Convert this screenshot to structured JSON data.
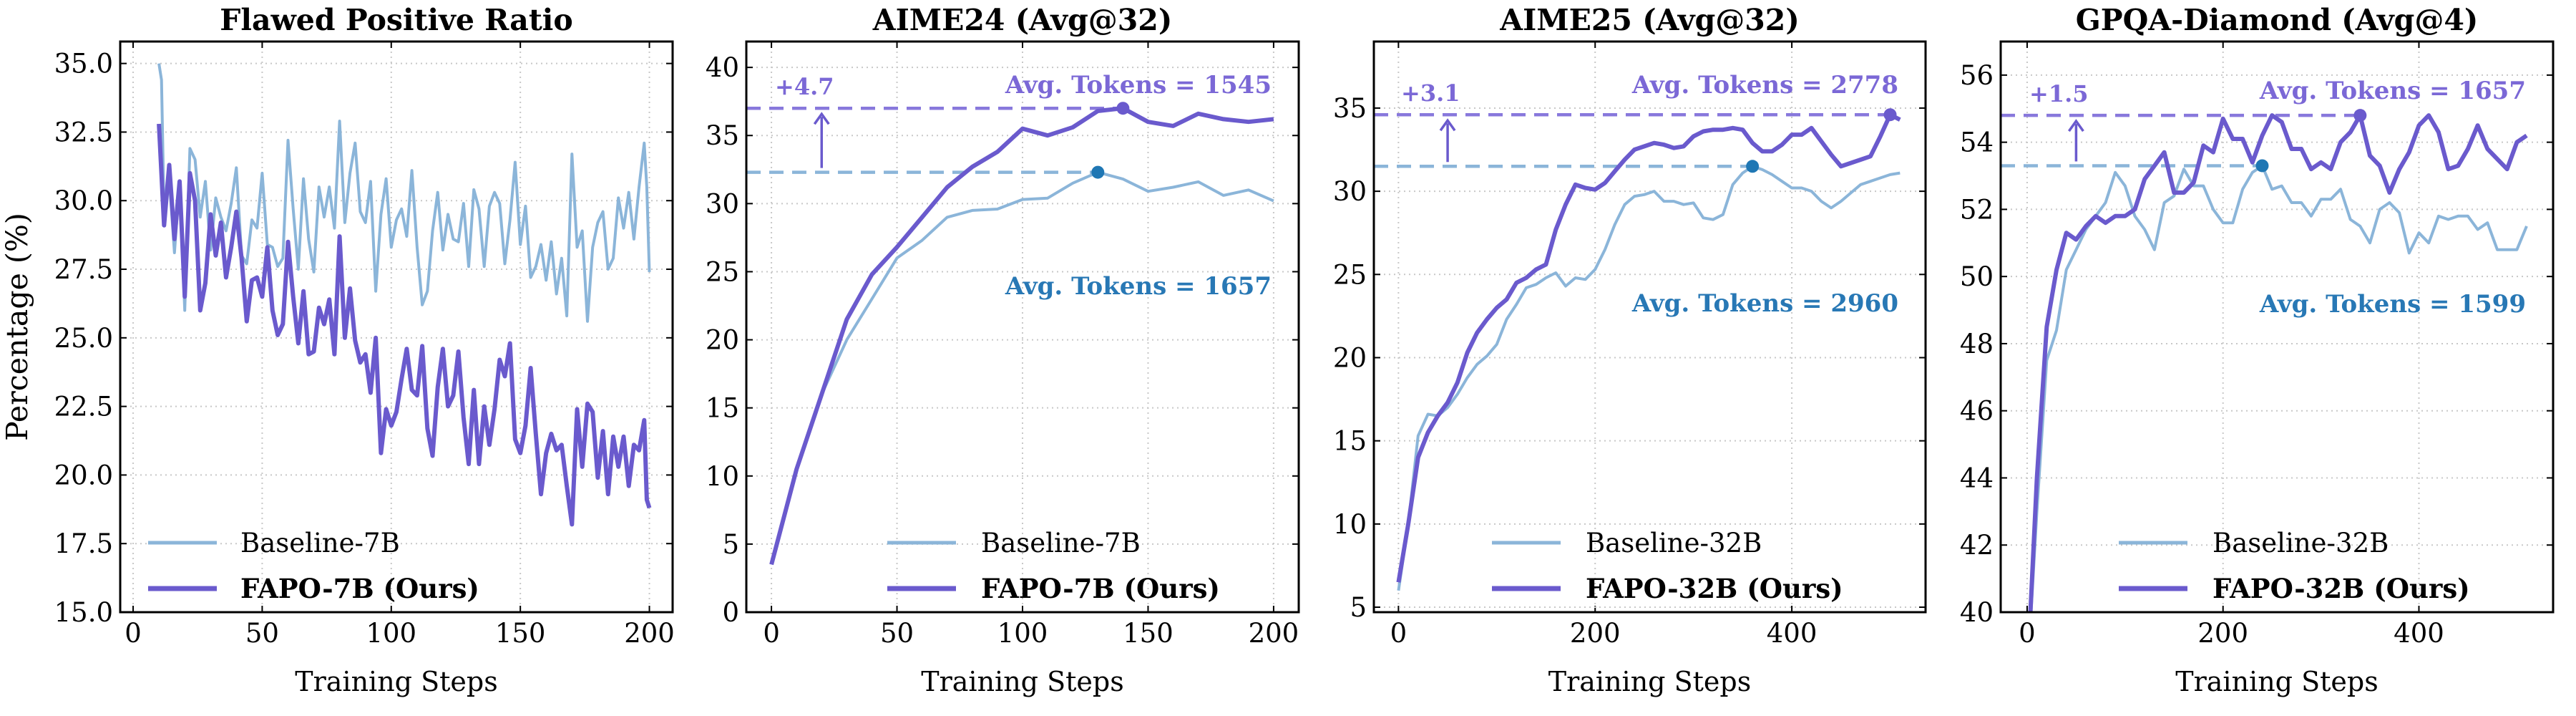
{
  "colors": {
    "baseline": "#8bb5d9",
    "fapo": "#6a5acd",
    "baseline_marker": "#1f77b4",
    "baseline_text": "#2878b5",
    "fapo_text": "#7b68d6",
    "fapo_dash": "#8878dc",
    "grid": "#c8c8c8"
  },
  "chart_data": [
    {
      "type": "line",
      "title": "Flawed Positive Ratio",
      "xlabel": "Training Steps",
      "ylabel": "Percentage (%)",
      "xlim": [
        -5,
        209
      ],
      "ylim": [
        15,
        35.8
      ],
      "xticks": [
        0,
        50,
        100,
        150,
        200
      ],
      "yticks": [
        "15.0",
        "17.5",
        "20.0",
        "22.5",
        "25.0",
        "27.5",
        "30.0",
        "32.5",
        "35.0"
      ],
      "grid": true,
      "legend_position": "lower-left",
      "series": [
        {
          "name": "Baseline-7B",
          "key": "baseline",
          "x": [
            10,
            11,
            12,
            14,
            16,
            18,
            20,
            22,
            24,
            26,
            28,
            30,
            32,
            34,
            36,
            38,
            40,
            42,
            44,
            46,
            48,
            50,
            52,
            54,
            56,
            58,
            60,
            62,
            64,
            66,
            68,
            70,
            72,
            74,
            76,
            78,
            80,
            82,
            84,
            86,
            88,
            90,
            92,
            94,
            96,
            98,
            100,
            102,
            104,
            106,
            108,
            110,
            112,
            114,
            116,
            118,
            120,
            122,
            124,
            126,
            128,
            130,
            132,
            134,
            136,
            138,
            140,
            142,
            144,
            146,
            148,
            150,
            152,
            154,
            156,
            158,
            160,
            162,
            164,
            166,
            168,
            170,
            172,
            174,
            176,
            178,
            180,
            182,
            184,
            186,
            188,
            190,
            192,
            194,
            196,
            198,
            199,
            200
          ],
          "y": [
            35,
            34.4,
            29.5,
            30.8,
            28.1,
            30.7,
            26,
            31.9,
            31.5,
            29.4,
            30.7,
            28.2,
            30.1,
            29.4,
            28.9,
            29.9,
            31.2,
            28,
            27.7,
            29.3,
            29,
            31,
            28.4,
            28.3,
            27.6,
            27.9,
            32.2,
            29.7,
            27.5,
            30.8,
            28.6,
            27.4,
            30.5,
            29.4,
            30.5,
            29,
            32.9,
            29.2,
            31,
            32.1,
            29.6,
            29.2,
            30.7,
            26.7,
            29.5,
            30.8,
            28.3,
            29.3,
            29.7,
            28.7,
            31.1,
            28.3,
            26.2,
            26.7,
            28.9,
            30.3,
            28.2,
            29.5,
            28.6,
            28.5,
            29.9,
            27.6,
            30.4,
            29.7,
            27.6,
            29.8,
            30.3,
            29.9,
            27.7,
            29.3,
            31.4,
            28.4,
            29.8,
            27.2,
            27.6,
            28.4,
            27.1,
            28.5,
            26.6,
            27.9,
            25.8,
            31.7,
            28.3,
            28.9,
            25.6,
            28.3,
            29.2,
            29.6,
            27.5,
            27.9,
            30.1,
            29,
            30.3,
            28.6,
            30.5,
            32.1,
            30.5,
            27.4
          ]
        },
        {
          "name": "FAPO-7B (Ours)",
          "key": "fapo",
          "x": [
            10,
            12,
            14,
            16,
            18,
            20,
            22,
            24,
            26,
            28,
            30,
            32,
            34,
            36,
            38,
            40,
            42,
            44,
            46,
            48,
            50,
            52,
            54,
            56,
            58,
            60,
            62,
            64,
            66,
            68,
            70,
            72,
            74,
            76,
            78,
            80,
            82,
            84,
            86,
            88,
            90,
            92,
            94,
            96,
            98,
            100,
            102,
            104,
            106,
            108,
            110,
            112,
            114,
            116,
            118,
            120,
            122,
            124,
            126,
            128,
            130,
            132,
            134,
            136,
            138,
            140,
            142,
            144,
            146,
            148,
            150,
            152,
            154,
            156,
            158,
            160,
            162,
            164,
            166,
            168,
            170,
            172,
            174,
            176,
            178,
            180,
            182,
            184,
            186,
            188,
            190,
            192,
            194,
            196,
            198,
            199,
            200
          ],
          "y": [
            32.8,
            29.1,
            31.3,
            28.6,
            30.7,
            26.5,
            31,
            30,
            26,
            27,
            29.5,
            28,
            29.2,
            27.2,
            28.3,
            29.6,
            27.9,
            25.6,
            27.1,
            27.2,
            26.5,
            28.3,
            26,
            25.1,
            25.5,
            28.5,
            26.5,
            24.8,
            26.7,
            24.4,
            24.5,
            26.1,
            25.5,
            26.4,
            24.4,
            28.7,
            25,
            26.8,
            24.9,
            24.1,
            24.4,
            23,
            25,
            20.8,
            22.4,
            21.8,
            22.3,
            23.5,
            24.6,
            23.1,
            22.9,
            24.7,
            21.7,
            20.7,
            23.2,
            24.6,
            22.5,
            22.9,
            24.5,
            22.1,
            20.4,
            23.1,
            20.4,
            22.5,
            21.1,
            22.4,
            24.2,
            23.6,
            24.8,
            21.3,
            20.8,
            21.8,
            23.9,
            21.5,
            19.3,
            20.8,
            21.5,
            20.9,
            21.1,
            19.6,
            18.2,
            22.4,
            20.3,
            22.6,
            22.3,
            19.9,
            21.6,
            19.3,
            21.4,
            20.3,
            21.4,
            19.6,
            21.1,
            20.9,
            22,
            19.1,
            18.8
          ]
        }
      ]
    },
    {
      "type": "line",
      "title": "AIME24 (Avg@32)",
      "xlabel": "Training Steps",
      "xlim": [
        -10,
        210
      ],
      "ylim": [
        0,
        41.9
      ],
      "xticks": [
        0,
        50,
        100,
        150,
        200
      ],
      "yticks": [
        "0",
        "5",
        "10",
        "15",
        "20",
        "25",
        "30",
        "35",
        "40"
      ],
      "grid": true,
      "legend_position": "lower-right",
      "series": [
        {
          "name": "Baseline-7B",
          "key": "baseline",
          "x": [
            0,
            10,
            20,
            30,
            40,
            50,
            60,
            70,
            80,
            90,
            100,
            110,
            120,
            130,
            140,
            150,
            160,
            170,
            180,
            190,
            200
          ],
          "y": [
            3.5,
            10.5,
            16,
            20,
            23,
            26,
            27.3,
            29,
            29.5,
            29.6,
            30.3,
            30.4,
            31.5,
            32.3,
            31.8,
            30.9,
            31.2,
            31.6,
            30.6,
            31,
            30.2
          ]
        },
        {
          "name": "FAPO-7B (Ours)",
          "key": "fapo",
          "x": [
            0,
            10,
            20,
            30,
            40,
            50,
            60,
            70,
            80,
            90,
            100,
            110,
            120,
            130,
            140,
            150,
            160,
            170,
            180,
            190,
            200
          ],
          "y": [
            3.5,
            10.5,
            16,
            21.5,
            24.8,
            26.8,
            29,
            31.2,
            32.7,
            33.8,
            35.5,
            35,
            35.6,
            36.8,
            37,
            36,
            35.7,
            36.6,
            36.2,
            36,
            36.2
          ]
        }
      ],
      "annotations": {
        "gain": "+4.7",
        "arrow_x": 20,
        "baseline_peak": {
          "x": 130,
          "y": 32.3
        },
        "fapo_peak": {
          "x": 140,
          "y": 37.0
        },
        "fapo_tokens": "Avg. Tokens = 1545",
        "baseline_tokens": "Avg. Tokens = 1657"
      }
    },
    {
      "type": "line",
      "title": "AIME25 (Avg@32)",
      "xlabel": "Training Steps",
      "xlim": [
        -25,
        536
      ],
      "ylim": [
        4.7,
        39
      ],
      "xticks": [
        0,
        200,
        400
      ],
      "yticks": [
        "5",
        "10",
        "15",
        "20",
        "25",
        "30",
        "35"
      ],
      "grid": true,
      "legend_position": "lower-right",
      "series": [
        {
          "name": "Baseline-32B",
          "key": "baseline",
          "x": [
            0,
            10,
            20,
            30,
            40,
            50,
            60,
            70,
            80,
            90,
            100,
            110,
            120,
            130,
            140,
            150,
            160,
            170,
            180,
            190,
            200,
            210,
            220,
            230,
            240,
            250,
            260,
            270,
            280,
            290,
            300,
            310,
            320,
            330,
            340,
            350,
            360,
            370,
            380,
            390,
            400,
            410,
            420,
            430,
            440,
            450,
            460,
            470,
            480,
            490,
            500,
            510
          ],
          "y": [
            6,
            10,
            15.3,
            16.6,
            16.5,
            17,
            17.8,
            18.8,
            19.6,
            20.1,
            20.8,
            22.3,
            23.2,
            24.2,
            24.4,
            24.8,
            25.1,
            24.3,
            24.8,
            24.7,
            25.3,
            26.5,
            28,
            29.2,
            29.7,
            29.8,
            30,
            29.4,
            29.4,
            29.2,
            29.3,
            28.4,
            28.3,
            28.6,
            30.4,
            31.1,
            31.5,
            31.3,
            31,
            30.6,
            30.2,
            30.2,
            30,
            29.4,
            29,
            29.4,
            29.9,
            30.4,
            30.6,
            30.8,
            31,
            31.1
          ]
        },
        {
          "name": "FAPO-32B (Ours)",
          "key": "fapo",
          "x": [
            0,
            10,
            20,
            30,
            40,
            50,
            60,
            70,
            80,
            90,
            100,
            110,
            120,
            130,
            140,
            150,
            160,
            170,
            180,
            190,
            200,
            210,
            220,
            230,
            240,
            250,
            260,
            270,
            280,
            290,
            300,
            310,
            320,
            330,
            340,
            350,
            360,
            370,
            380,
            390,
            400,
            410,
            420,
            430,
            440,
            450,
            460,
            470,
            480,
            490,
            500,
            510
          ],
          "y": [
            6.5,
            10,
            14,
            15.5,
            16.5,
            17.3,
            18.5,
            20.3,
            21.5,
            22.3,
            23,
            23.5,
            24.5,
            24.8,
            25.3,
            25.6,
            27.7,
            29.2,
            30.4,
            30.2,
            30.1,
            30.5,
            31.2,
            31.9,
            32.5,
            32.7,
            32.9,
            32.8,
            32.6,
            32.7,
            33.3,
            33.6,
            33.7,
            33.7,
            33.8,
            33.7,
            32.9,
            32.4,
            32.4,
            32.8,
            33.4,
            33.4,
            33.8,
            33,
            32.2,
            31.5,
            31.7,
            31.9,
            32.1,
            33.3,
            34.6,
            34.3
          ]
        }
      ],
      "annotations": {
        "gain": "+3.1",
        "arrow_x": 50,
        "baseline_peak": {
          "x": 360,
          "y": 31.5
        },
        "fapo_peak": {
          "x": 500,
          "y": 34.6
        },
        "fapo_tokens": "Avg. Tokens = 2778",
        "baseline_tokens": "Avg. Tokens = 2960"
      }
    },
    {
      "type": "line",
      "title": "GPQA-Diamond (Avg@4)",
      "xlabel": "Training Steps",
      "xlim": [
        -27,
        537
      ],
      "ylim": [
        40,
        57
      ],
      "xticks": [
        0,
        200,
        400
      ],
      "yticks": [
        "40",
        "42",
        "44",
        "46",
        "48",
        "50",
        "52",
        "54",
        "56"
      ],
      "grid": true,
      "legend_position": "lower-right",
      "series": [
        {
          "name": "Baseline-32B",
          "key": "baseline",
          "x": [
            0,
            10,
            20,
            30,
            40,
            50,
            60,
            70,
            80,
            90,
            100,
            110,
            120,
            130,
            140,
            150,
            160,
            170,
            180,
            190,
            200,
            210,
            220,
            230,
            240,
            250,
            260,
            270,
            280,
            290,
            300,
            310,
            320,
            330,
            340,
            350,
            360,
            370,
            380,
            390,
            400,
            410,
            420,
            430,
            440,
            450,
            460,
            470,
            480,
            490,
            500,
            510
          ],
          "y": [
            38,
            43,
            47.5,
            48.4,
            50.2,
            50.8,
            51.4,
            51.8,
            52.2,
            53.1,
            52.7,
            51.8,
            51.4,
            50.8,
            52.2,
            52.4,
            53.2,
            52.7,
            52.7,
            52,
            51.6,
            51.6,
            52.6,
            53.1,
            53.3,
            52.6,
            52.7,
            52.2,
            52.2,
            51.8,
            52.3,
            52.3,
            52.6,
            51.7,
            51.5,
            51,
            52,
            52.2,
            51.9,
            50.7,
            51.3,
            51,
            51.8,
            51.7,
            51.8,
            51.8,
            51.4,
            51.6,
            50.8,
            50.8,
            50.8,
            51.5
          ]
        },
        {
          "name": "FAPO-32B (Ours)",
          "key": "fapo",
          "x": [
            0,
            10,
            20,
            30,
            40,
            50,
            60,
            70,
            80,
            90,
            100,
            110,
            120,
            130,
            140,
            150,
            160,
            170,
            180,
            190,
            200,
            210,
            220,
            230,
            240,
            250,
            260,
            270,
            280,
            290,
            300,
            310,
            320,
            330,
            340,
            350,
            360,
            370,
            380,
            390,
            400,
            410,
            420,
            430,
            440,
            450,
            460,
            470,
            480,
            490,
            500,
            510
          ],
          "y": [
            38,
            44,
            48.5,
            50.2,
            51.3,
            51.1,
            51.5,
            51.8,
            51.6,
            51.8,
            51.8,
            52,
            52.9,
            53.3,
            53.7,
            52.5,
            52.5,
            52.8,
            53.9,
            53.7,
            54.7,
            54.1,
            54.1,
            53.4,
            54.2,
            54.8,
            54.6,
            53.8,
            53.8,
            53.2,
            53.4,
            53.2,
            54,
            54.3,
            54.8,
            53.6,
            53.3,
            52.5,
            53.2,
            53.7,
            54.5,
            54.8,
            54.3,
            53.2,
            53.3,
            53.8,
            54.5,
            53.8,
            53.5,
            53.2,
            54,
            54.2
          ]
        }
      ],
      "annotations": {
        "gain": "+1.5",
        "arrow_x": 50,
        "baseline_peak": {
          "x": 240,
          "y": 53.3
        },
        "fapo_peak": {
          "x": 340,
          "y": 54.8
        },
        "fapo_tokens": "Avg. Tokens = 1657",
        "baseline_tokens": "Avg. Tokens = 1599"
      }
    }
  ]
}
